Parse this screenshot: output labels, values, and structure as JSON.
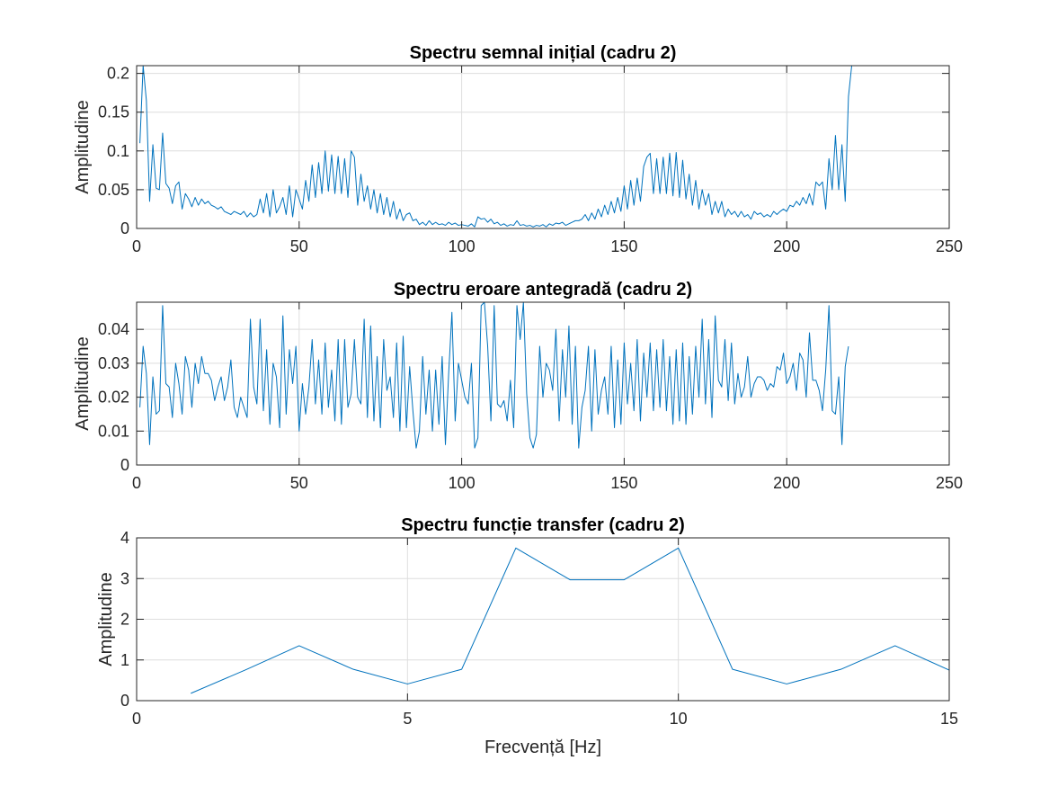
{
  "colors": {
    "series": "#0072bd",
    "axis": "#262626",
    "grid": "#dedede"
  },
  "chart_data": [
    {
      "type": "line",
      "title": "Spectru semnal inițial (cadru 2)",
      "xlabel": "",
      "ylabel": "Amplitudine",
      "xlim": [
        0,
        250
      ],
      "ylim": [
        0,
        0.21
      ],
      "xticks": [
        0,
        50,
        100,
        150,
        200,
        250
      ],
      "xtick_labels": [
        "0",
        "50",
        "100",
        "150",
        "200",
        "250"
      ],
      "yticks": [
        0,
        0.05,
        0.1,
        0.15,
        0.2
      ],
      "ytick_labels": [
        "0",
        "0.05",
        "0.1",
        "0.15",
        "0.2"
      ],
      "grid": true,
      "x": [
        1,
        2,
        3,
        4,
        5,
        6,
        7,
        8,
        9,
        10,
        11,
        12,
        13,
        14,
        15,
        16,
        17,
        18,
        19,
        20,
        21,
        22,
        23,
        24,
        25,
        26,
        27,
        28,
        29,
        30,
        31,
        32,
        33,
        34,
        35,
        36,
        37,
        38,
        39,
        40,
        41,
        42,
        43,
        44,
        45,
        46,
        47,
        48,
        49,
        50,
        51,
        52,
        53,
        54,
        55,
        56,
        57,
        58,
        59,
        60,
        61,
        62,
        63,
        64,
        65,
        66,
        67,
        68,
        69,
        70,
        71,
        72,
        73,
        74,
        75,
        76,
        77,
        78,
        79,
        80,
        81,
        82,
        83,
        84,
        85,
        86,
        87,
        88,
        89,
        90,
        91,
        92,
        93,
        94,
        95,
        96,
        97,
        98,
        99,
        100,
        101,
        102,
        103,
        104,
        105,
        106,
        107,
        108,
        109,
        110,
        111,
        112,
        113,
        114,
        115,
        116,
        117,
        118,
        119,
        120,
        121,
        122,
        123,
        124,
        125,
        126,
        127,
        128,
        129,
        130,
        131,
        132,
        133,
        134,
        135,
        136,
        137,
        138,
        139,
        140,
        141,
        142,
        143,
        144,
        145,
        146,
        147,
        148,
        149,
        150,
        151,
        152,
        153,
        154,
        155,
        156,
        157,
        158,
        159,
        160,
        161,
        162,
        163,
        164,
        165,
        166,
        167,
        168,
        169,
        170,
        171,
        172,
        173,
        174,
        175,
        176,
        177,
        178,
        179,
        180,
        181,
        182,
        183,
        184,
        185,
        186,
        187,
        188,
        189,
        190,
        191,
        192,
        193,
        194,
        195,
        196,
        197,
        198,
        199,
        200,
        201,
        202,
        203,
        204,
        205,
        206,
        207,
        208,
        209,
        210,
        211,
        212,
        213,
        214,
        215,
        216,
        217,
        218,
        219,
        220
      ],
      "series": [
        {
          "values": [
            0.11,
            0.21,
            0.165,
            0.035,
            0.108,
            0.052,
            0.05,
            0.123,
            0.058,
            0.052,
            0.032,
            0.055,
            0.06,
            0.025,
            0.045,
            0.038,
            0.028,
            0.04,
            0.03,
            0.038,
            0.032,
            0.035,
            0.03,
            0.028,
            0.025,
            0.028,
            0.022,
            0.02,
            0.018,
            0.022,
            0.02,
            0.018,
            0.022,
            0.015,
            0.02,
            0.015,
            0.018,
            0.038,
            0.02,
            0.045,
            0.015,
            0.05,
            0.02,
            0.028,
            0.04,
            0.018,
            0.055,
            0.015,
            0.05,
            0.038,
            0.025,
            0.062,
            0.035,
            0.082,
            0.04,
            0.085,
            0.045,
            0.1,
            0.048,
            0.095,
            0.045,
            0.093,
            0.045,
            0.09,
            0.04,
            0.1,
            0.092,
            0.03,
            0.07,
            0.035,
            0.055,
            0.025,
            0.05,
            0.02,
            0.045,
            0.018,
            0.04,
            0.015,
            0.035,
            0.012,
            0.025,
            0.01,
            0.018,
            0.02,
            0.01,
            0.012,
            0.005,
            0.008,
            0.004,
            0.01,
            0.005,
            0.008,
            0.005,
            0.006,
            0.004,
            0.008,
            0.005,
            0.007,
            0.004,
            0.005,
            0.004,
            0.003,
            0.006,
            0.002,
            0.015,
            0.012,
            0.013,
            0.008,
            0.012,
            0.006,
            0.008,
            0.004,
            0.006,
            0.003,
            0.005,
            0.004,
            0.01,
            0.004,
            0.005,
            0.003,
            0.004,
            0.002,
            0.004,
            0.003,
            0.005,
            0.002,
            0.006,
            0.004,
            0.007,
            0.006,
            0.008,
            0.004,
            0.006,
            0.008,
            0.01,
            0.01,
            0.012,
            0.018,
            0.01,
            0.02,
            0.012,
            0.025,
            0.015,
            0.03,
            0.018,
            0.035,
            0.02,
            0.04,
            0.022,
            0.055,
            0.025,
            0.062,
            0.03,
            0.065,
            0.035,
            0.08,
            0.092,
            0.097,
            0.045,
            0.09,
            0.045,
            0.092,
            0.045,
            0.097,
            0.042,
            0.098,
            0.04,
            0.088,
            0.038,
            0.07,
            0.03,
            0.062,
            0.025,
            0.05,
            0.03,
            0.045,
            0.018,
            0.035,
            0.02,
            0.035,
            0.015,
            0.025,
            0.018,
            0.022,
            0.015,
            0.022,
            0.015,
            0.018,
            0.012,
            0.022,
            0.018,
            0.02,
            0.015,
            0.018,
            0.015,
            0.022,
            0.018,
            0.022,
            0.025,
            0.022,
            0.03,
            0.028,
            0.035,
            0.03,
            0.04,
            0.032,
            0.045,
            0.03,
            0.06,
            0.055,
            0.06,
            0.025,
            0.09,
            0.05,
            0.12,
            0.05,
            0.108,
            0.035,
            0.17,
            0.21
          ]
        }
      ]
    },
    {
      "type": "line",
      "title": "Spectru eroare antegradă (cadru 2)",
      "xlabel": "",
      "ylabel": "Amplitudine",
      "xlim": [
        0,
        250
      ],
      "ylim": [
        0,
        0.048
      ],
      "xticks": [
        0,
        50,
        100,
        150,
        200,
        250
      ],
      "xtick_labels": [
        "0",
        "50",
        "100",
        "150",
        "200",
        "250"
      ],
      "yticks": [
        0,
        0.01,
        0.02,
        0.03,
        0.04
      ],
      "ytick_labels": [
        "0",
        "0.01",
        "0.02",
        "0.03",
        "0.04"
      ],
      "grid": true,
      "x": [
        1,
        2,
        3,
        4,
        5,
        6,
        7,
        8,
        9,
        10,
        11,
        12,
        13,
        14,
        15,
        16,
        17,
        18,
        19,
        20,
        21,
        22,
        23,
        24,
        25,
        26,
        27,
        28,
        29,
        30,
        31,
        32,
        33,
        34,
        35,
        36,
        37,
        38,
        39,
        40,
        41,
        42,
        43,
        44,
        45,
        46,
        47,
        48,
        49,
        50,
        51,
        52,
        53,
        54,
        55,
        56,
        57,
        58,
        59,
        60,
        61,
        62,
        63,
        64,
        65,
        66,
        67,
        68,
        69,
        70,
        71,
        72,
        73,
        74,
        75,
        76,
        77,
        78,
        79,
        80,
        81,
        82,
        83,
        84,
        85,
        86,
        87,
        88,
        89,
        90,
        91,
        92,
        93,
        94,
        95,
        96,
        97,
        98,
        99,
        100,
        101,
        102,
        103,
        104,
        105,
        106,
        107,
        108,
        109,
        110,
        111,
        112,
        113,
        114,
        115,
        116,
        117,
        118,
        119,
        120,
        121,
        122,
        123,
        124,
        125,
        126,
        127,
        128,
        129,
        130,
        131,
        132,
        133,
        134,
        135,
        136,
        137,
        138,
        139,
        140,
        141,
        142,
        143,
        144,
        145,
        146,
        147,
        148,
        149,
        150,
        151,
        152,
        153,
        154,
        155,
        156,
        157,
        158,
        159,
        160,
        161,
        162,
        163,
        164,
        165,
        166,
        167,
        168,
        169,
        170,
        171,
        172,
        173,
        174,
        175,
        176,
        177,
        178,
        179,
        180,
        181,
        182,
        183,
        184,
        185,
        186,
        187,
        188,
        189,
        190,
        191,
        192,
        193,
        194,
        195,
        196,
        197,
        198,
        199,
        200,
        201,
        202,
        203,
        204,
        205,
        206,
        207,
        208,
        209,
        210,
        211,
        212,
        213,
        214,
        215,
        216,
        217,
        218,
        219
      ],
      "series": [
        {
          "values": [
            0.017,
            0.035,
            0.027,
            0.006,
            0.026,
            0.015,
            0.016,
            0.047,
            0.024,
            0.023,
            0.014,
            0.03,
            0.024,
            0.015,
            0.032,
            0.028,
            0.017,
            0.03,
            0.024,
            0.032,
            0.027,
            0.027,
            0.025,
            0.019,
            0.023,
            0.026,
            0.019,
            0.023,
            0.031,
            0.017,
            0.014,
            0.02,
            0.017,
            0.014,
            0.043,
            0.023,
            0.018,
            0.043,
            0.016,
            0.034,
            0.012,
            0.03,
            0.026,
            0.011,
            0.044,
            0.015,
            0.034,
            0.024,
            0.035,
            0.01,
            0.024,
            0.015,
            0.023,
            0.037,
            0.018,
            0.031,
            0.015,
            0.036,
            0.017,
            0.028,
            0.013,
            0.037,
            0.012,
            0.037,
            0.017,
            0.021,
            0.037,
            0.02,
            0.018,
            0.043,
            0.014,
            0.041,
            0.013,
            0.032,
            0.011,
            0.037,
            0.022,
            0.026,
            0.014,
            0.036,
            0.01,
            0.038,
            0.011,
            0.029,
            0.016,
            0.005,
            0.01,
            0.032,
            0.015,
            0.028,
            0.01,
            0.028,
            0.012,
            0.032,
            0.006,
            0.027,
            0.045,
            0.013,
            0.03,
            0.025,
            0.02,
            0.018,
            0.03,
            0.005,
            0.008,
            0.047,
            0.048,
            0.035,
            0.013,
            0.047,
            0.018,
            0.017,
            0.019,
            0.013,
            0.025,
            0.011,
            0.047,
            0.037,
            0.048,
            0.021,
            0.008,
            0.005,
            0.009,
            0.035,
            0.02,
            0.03,
            0.028,
            0.022,
            0.04,
            0.013,
            0.034,
            0.02,
            0.041,
            0.012,
            0.035,
            0.005,
            0.017,
            0.022,
            0.035,
            0.01,
            0.034,
            0.015,
            0.022,
            0.026,
            0.015,
            0.035,
            0.011,
            0.031,
            0.012,
            0.036,
            0.018,
            0.03,
            0.016,
            0.037,
            0.013,
            0.033,
            0.02,
            0.036,
            0.016,
            0.034,
            0.017,
            0.037,
            0.016,
            0.032,
            0.012,
            0.034,
            0.013,
            0.036,
            0.012,
            0.032,
            0.015,
            0.035,
            0.02,
            0.043,
            0.018,
            0.037,
            0.014,
            0.044,
            0.025,
            0.023,
            0.037,
            0.019,
            0.036,
            0.018,
            0.027,
            0.02,
            0.023,
            0.032,
            0.02,
            0.024,
            0.026,
            0.026,
            0.025,
            0.022,
            0.024,
            0.023,
            0.029,
            0.028,
            0.033,
            0.024,
            0.026,
            0.03,
            0.022,
            0.033,
            0.031,
            0.02,
            0.039,
            0.025,
            0.025,
            0.022,
            0.016,
            0.028,
            0.047,
            0.016,
            0.015,
            0.026,
            0.006,
            0.029,
            0.035
          ]
        }
      ]
    },
    {
      "type": "line",
      "title": "Spectru funcție transfer (cadru 2)",
      "xlabel": "Frecvență [Hz]",
      "ylabel": "Amplitudine",
      "xlim": [
        0,
        15
      ],
      "ylim": [
        0,
        4
      ],
      "xticks": [
        0,
        5,
        10,
        15
      ],
      "xtick_labels": [
        "0",
        "5",
        "10",
        "15"
      ],
      "yticks": [
        0,
        1,
        2,
        3,
        4
      ],
      "ytick_labels": [
        "0",
        "1",
        "2",
        "3",
        "4"
      ],
      "grid": true,
      "x": [
        1,
        2,
        3,
        4,
        5,
        6,
        7,
        8,
        9,
        10,
        11,
        12,
        13,
        14,
        15
      ],
      "series": [
        {
          "values": [
            0.18,
            0.75,
            1.35,
            0.77,
            0.41,
            0.77,
            3.75,
            2.97,
            2.97,
            3.75,
            0.77,
            0.41,
            0.77,
            1.35,
            0.75
          ]
        }
      ]
    }
  ]
}
